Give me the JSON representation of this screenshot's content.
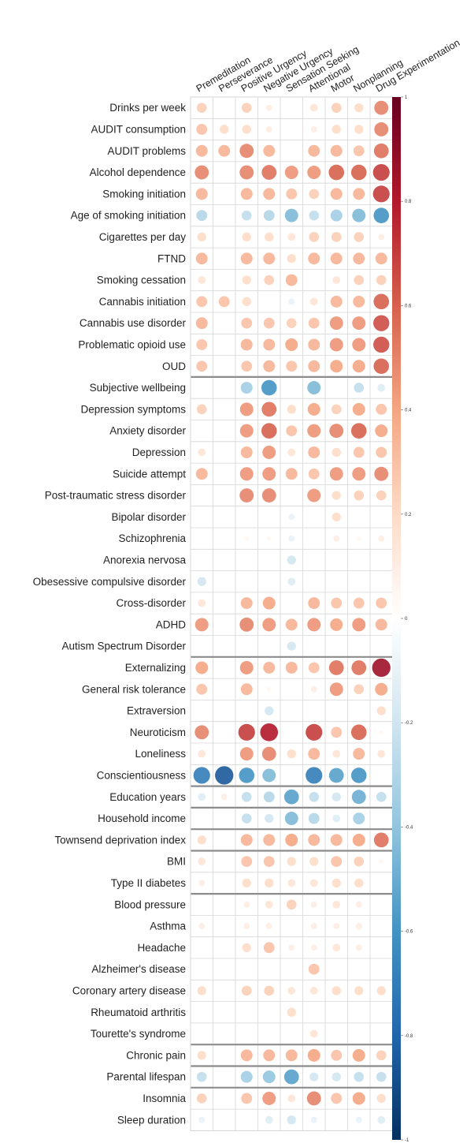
{
  "chart_data": {
    "type": "heatmap",
    "columns": [
      "Premeditation",
      "Perseverance",
      "Positive Urgency",
      "Negative Urgency",
      "Sensation Seeking",
      "Attentional",
      "Motor",
      "Nonplanning",
      "Drug Experimentation"
    ],
    "rows": [
      "Drinks per week",
      "AUDIT consumption",
      "AUDIT problems",
      "Alcohol dependence",
      "Smoking initiation",
      "Age of smoking initiation",
      "Cigarettes per day",
      "FTND",
      "Smoking cessation",
      "Cannabis initiation",
      "Cannabis use disorder",
      "Problematic opioid use",
      "OUD",
      "Subjective wellbeing",
      "Depression symptoms",
      "Anxiety disorder",
      "Depression",
      "Suicide attempt",
      "Post-traumatic stress disorder",
      "Bipolar disorder",
      "Schizophrenia",
      "Anorexia nervosa",
      "Obesessive compulsive disorder",
      "Cross-disorder",
      "ADHD",
      "Autism Spectrum Disorder",
      "Externalizing",
      "General risk tolerance",
      "Extraversion",
      "Neuroticism",
      "Loneliness",
      "Conscientiousness",
      "Education years",
      "Household income",
      "Townsend deprivation index",
      "BMI",
      "Type II diabetes",
      "Blood pressure",
      "Asthma",
      "Headache",
      "Alzheimer's disease",
      "Coronary artery disease",
      "Rheumatoid arthritis",
      "Tourette's syndrome",
      "Chronic pain",
      "Parental lifespan",
      "Insomnia",
      "Sleep duration"
    ],
    "values": [
      [
        0.25,
        0,
        0.25,
        0.1,
        0,
        0.15,
        0.25,
        0.2,
        0.5
      ],
      [
        0.3,
        0.2,
        0.2,
        0.1,
        0,
        0.1,
        0.2,
        0.2,
        0.5
      ],
      [
        0.35,
        0.35,
        0.5,
        0.35,
        0,
        0.35,
        0.35,
        0.3,
        0.55
      ],
      [
        0.5,
        0,
        0.5,
        0.55,
        0.45,
        0.45,
        0.6,
        0.6,
        0.7
      ],
      [
        0.35,
        0,
        0.35,
        0.35,
        0.3,
        0.25,
        0.35,
        0.35,
        0.7
      ],
      [
        -0.3,
        0,
        -0.25,
        -0.3,
        -0.45,
        -0.25,
        -0.35,
        -0.45,
        -0.6
      ],
      [
        0.2,
        0,
        0.2,
        0.2,
        0.15,
        0.25,
        0.25,
        0.25,
        0.1
      ],
      [
        0.35,
        0,
        0.35,
        0.35,
        0.2,
        0.35,
        0.35,
        0.35,
        0.35
      ],
      [
        0.15,
        0,
        0.2,
        0.25,
        0.35,
        0,
        0.15,
        0.25,
        0.25
      ],
      [
        0.3,
        0.3,
        0.2,
        0,
        -0.1,
        0.15,
        0.35,
        0.35,
        0.6
      ],
      [
        0.35,
        0,
        0.3,
        0.3,
        0.25,
        0.3,
        0.45,
        0.45,
        0.65
      ],
      [
        0.3,
        0,
        0.35,
        0.35,
        0.4,
        0.35,
        0.45,
        0.45,
        0.65
      ],
      [
        0.3,
        0,
        0.3,
        0.35,
        0.3,
        0.35,
        0.4,
        0.4,
        0.6
      ],
      [
        0,
        0,
        -0.35,
        -0.6,
        0,
        -0.45,
        0,
        -0.25,
        -0.15
      ],
      [
        0.25,
        0,
        0.45,
        0.55,
        0.2,
        0.4,
        0.25,
        0.4,
        0.3
      ],
      [
        0,
        0,
        0.45,
        0.6,
        0.3,
        0.45,
        0.5,
        0.6,
        0.4
      ],
      [
        0.15,
        0,
        0.35,
        0.45,
        0.15,
        0.35,
        0.2,
        0.3,
        0.3
      ],
      [
        0.35,
        0,
        0.45,
        0.45,
        0.35,
        0.3,
        0.45,
        0.45,
        0.5
      ],
      [
        0,
        0,
        0.5,
        0.5,
        0,
        0.45,
        0.2,
        0.25,
        0.25
      ],
      [
        0,
        0,
        0,
        0,
        -0.1,
        0,
        0.2,
        0,
        0
      ],
      [
        0,
        0,
        0.05,
        0.05,
        -0.1,
        0,
        0.1,
        0.05,
        0.1
      ],
      [
        0,
        0,
        0,
        0,
        -0.2,
        0,
        0,
        0,
        0
      ],
      [
        -0.2,
        0,
        0,
        0,
        -0.15,
        0,
        0,
        0,
        0
      ],
      [
        0.15,
        0,
        0.35,
        0.4,
        0,
        0.35,
        0.3,
        0.3,
        0.3
      ],
      [
        0.45,
        0,
        0.5,
        0.45,
        0.35,
        0.45,
        0.4,
        0.45,
        0.35
      ],
      [
        0,
        0,
        0,
        0,
        -0.2,
        0,
        0,
        0,
        0
      ],
      [
        0.4,
        0,
        0.45,
        0.35,
        0.35,
        0.3,
        0.55,
        0.55,
        0.85
      ],
      [
        0.3,
        0,
        0.35,
        0.05,
        0,
        0.1,
        0.45,
        0.25,
        0.4
      ],
      [
        0,
        0,
        0,
        -0.2,
        0,
        0,
        0,
        0,
        0.2
      ],
      [
        0.5,
        0,
        0.7,
        0.8,
        0,
        0.7,
        0.3,
        0.6,
        0.05
      ],
      [
        0.15,
        0,
        0.45,
        0.5,
        0.2,
        0.35,
        0.15,
        0.35,
        0.15
      ],
      [
        -0.7,
        -0.85,
        -0.6,
        -0.45,
        0,
        -0.7,
        -0.55,
        -0.6,
        0
      ],
      [
        -0.15,
        0.1,
        -0.25,
        -0.3,
        -0.55,
        -0.25,
        -0.2,
        -0.5,
        -0.25
      ],
      [
        0,
        0,
        -0.25,
        -0.2,
        -0.45,
        -0.3,
        -0.15,
        -0.35,
        0
      ],
      [
        0.2,
        0,
        0.35,
        0.35,
        0.4,
        0.35,
        0.35,
        0.4,
        0.55
      ],
      [
        0.15,
        0,
        0.3,
        0.3,
        0.2,
        0.2,
        0.3,
        0.25,
        0.05
      ],
      [
        0.1,
        0,
        0.2,
        0.2,
        0.15,
        0.15,
        0.2,
        0.2,
        0
      ],
      [
        0,
        0,
        0.1,
        0.15,
        0.25,
        0.1,
        0.15,
        0.1,
        0
      ],
      [
        0.1,
        0,
        0.1,
        0.1,
        0,
        0.1,
        0.1,
        0.1,
        0
      ],
      [
        0,
        0,
        0.2,
        0.3,
        0.1,
        0.1,
        0.15,
        0.1,
        0
      ],
      [
        0,
        0,
        0,
        0,
        0,
        0.3,
        0,
        0,
        0
      ],
      [
        0.2,
        0,
        0.25,
        0.25,
        0.15,
        0.15,
        0.2,
        0.2,
        0.2
      ],
      [
        0,
        0,
        0,
        0,
        0.2,
        0,
        0,
        0,
        0
      ],
      [
        0,
        0,
        0,
        0,
        0,
        0.15,
        0,
        0,
        0
      ],
      [
        0.2,
        0,
        0.35,
        0.35,
        0.35,
        0.4,
        0.3,
        0.4,
        0.25
      ],
      [
        -0.25,
        0,
        -0.35,
        -0.4,
        -0.55,
        -0.2,
        -0.2,
        -0.25,
        -0.25
      ],
      [
        0.25,
        0,
        0.3,
        0.45,
        0.15,
        0.5,
        0.3,
        0.4,
        0.2
      ],
      [
        -0.1,
        0,
        0,
        -0.15,
        -0.2,
        -0.1,
        0,
        -0.1,
        -0.15
      ]
    ],
    "group_breaks_after_row": [
      12,
      25,
      31,
      32,
      33,
      34,
      36,
      43,
      44,
      45
    ],
    "colorbar": {
      "range": [
        -1,
        1
      ],
      "ticks": [
        "1",
        "0.8",
        "0.6",
        "0.4",
        "0.2",
        "0",
        "-0.2",
        "-0.4",
        "-0.6",
        "-0.8",
        "-1"
      ]
    },
    "colors": {
      "negative": "#053061",
      "zero": "#ffffff",
      "positive": "#b2182b",
      "grid": "#d6d6d6",
      "separator": "#8c8c8c"
    },
    "title": "",
    "xlabel": "",
    "ylabel": ""
  }
}
